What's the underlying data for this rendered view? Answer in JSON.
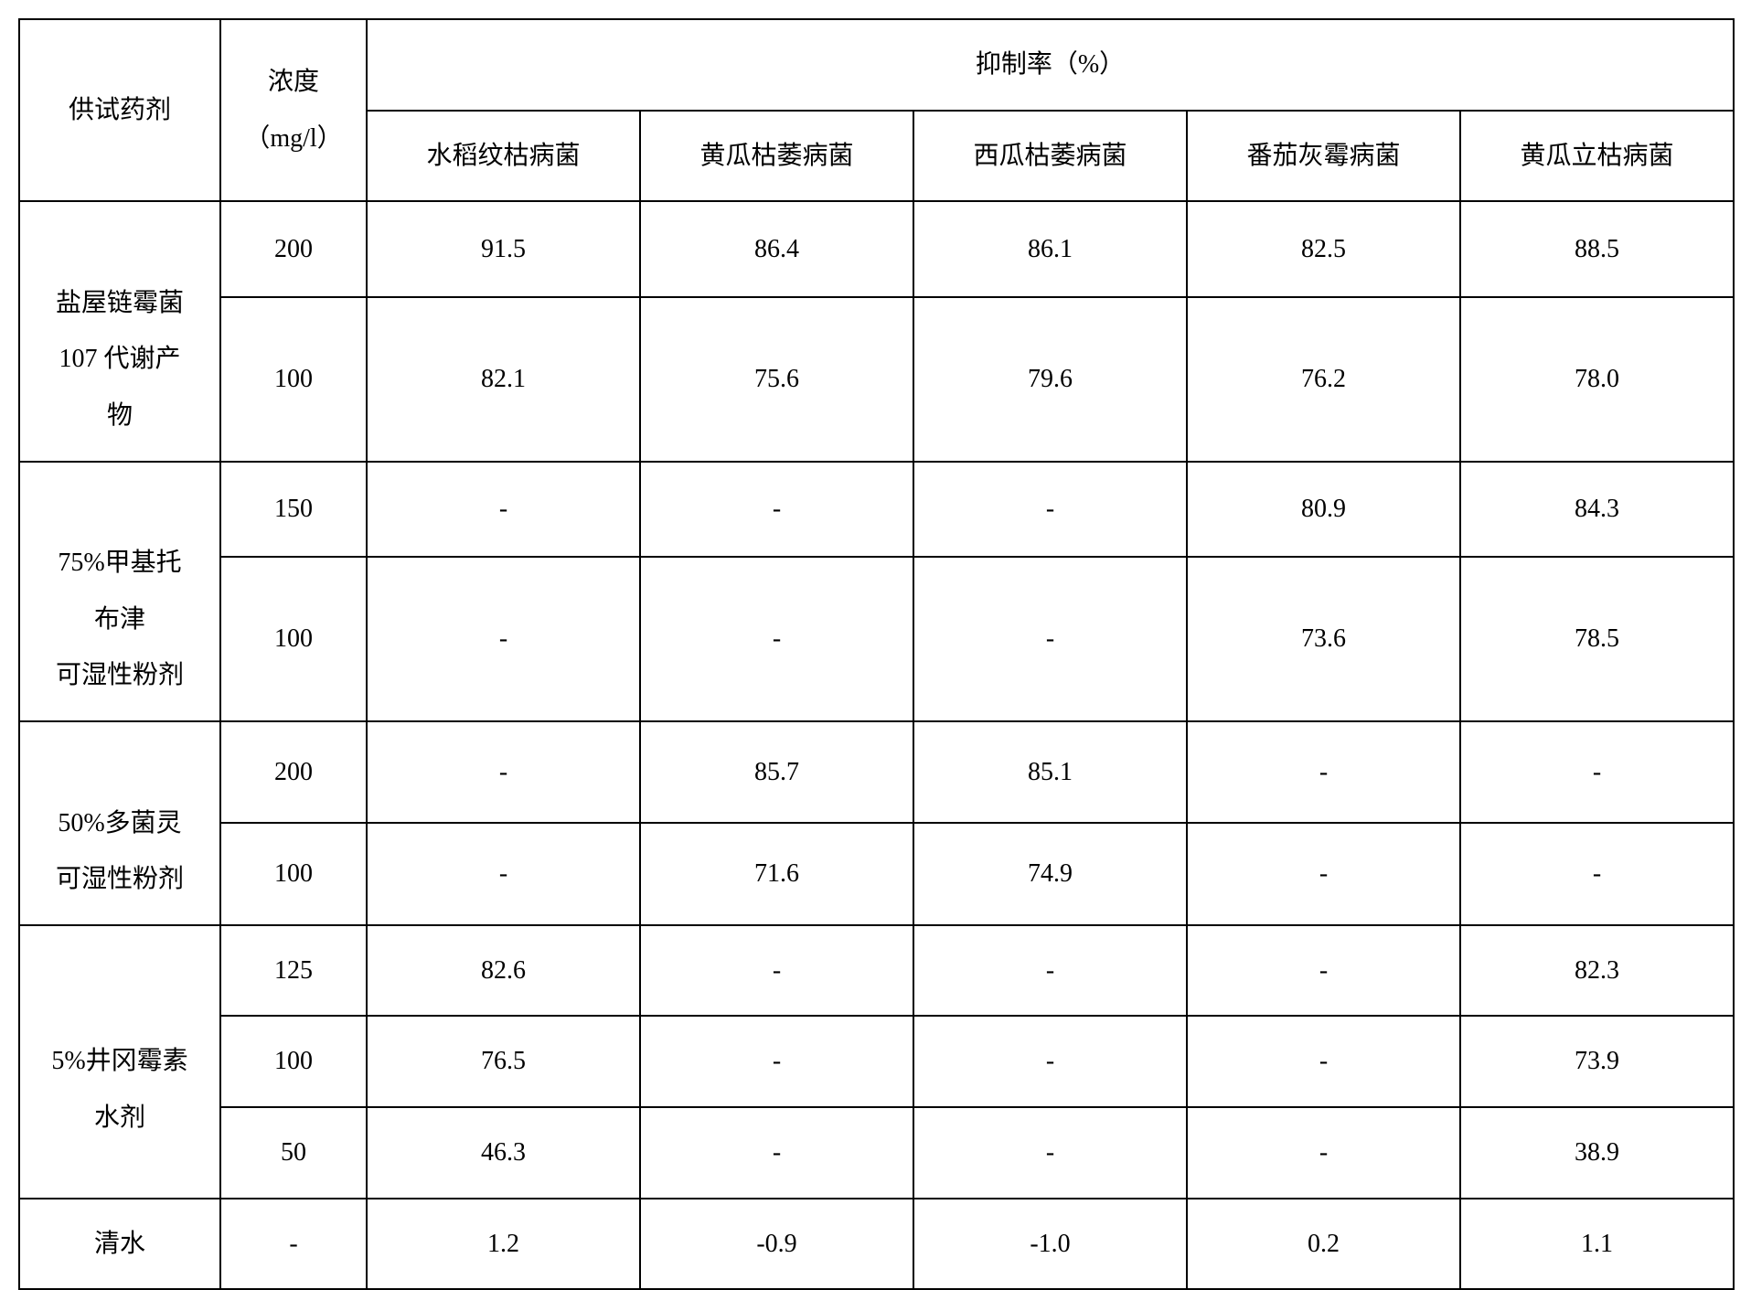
{
  "table": {
    "header": {
      "agent_label": "供试药剂",
      "concentration_label": "浓度",
      "concentration_unit": "（mg/l）",
      "inhibition_label": "抑制率（%）",
      "pathogens": [
        "水稻纹枯病菌",
        "黄瓜枯萎病菌",
        "西瓜枯萎病菌",
        "番茄灰霉病菌",
        "黄瓜立枯病菌"
      ]
    },
    "rows": [
      {
        "agent": "盐屋链霉菌\n107 代谢产\n物",
        "data": [
          {
            "conc": "200",
            "values": [
              "91.5",
              "86.4",
              "86.1",
              "82.5",
              "88.5"
            ]
          },
          {
            "conc": "100",
            "values": [
              "82.1",
              "75.6",
              "79.6",
              "76.2",
              "78.0"
            ]
          }
        ]
      },
      {
        "agent": "75%甲基托\n布津\n可湿性粉剂",
        "data": [
          {
            "conc": "150",
            "values": [
              "-",
              "-",
              "-",
              "80.9",
              "84.3"
            ]
          },
          {
            "conc": "100",
            "values": [
              "-",
              "-",
              "-",
              "73.6",
              "78.5"
            ]
          }
        ]
      },
      {
        "agent": "50%多菌灵\n可湿性粉剂",
        "data": [
          {
            "conc": "200",
            "values": [
              "-",
              "85.7",
              "85.1",
              "-",
              "-"
            ]
          },
          {
            "conc": "100",
            "values": [
              "-",
              "71.6",
              "74.9",
              "-",
              "-"
            ]
          }
        ]
      },
      {
        "agent": "5%井冈霉素\n水剂",
        "data": [
          {
            "conc": "125",
            "values": [
              "82.6",
              "-",
              "-",
              "-",
              "82.3"
            ]
          },
          {
            "conc": "100",
            "values": [
              "76.5",
              "-",
              "-",
              "-",
              "73.9"
            ]
          },
          {
            "conc": "50",
            "values": [
              "46.3",
              "-",
              "-",
              "-",
              "38.9"
            ]
          }
        ]
      },
      {
        "agent": "清水",
        "data": [
          {
            "conc": "-",
            "values": [
              "1.2",
              "-0.9",
              "-1.0",
              "0.2",
              "1.1"
            ]
          }
        ]
      }
    ],
    "styling": {
      "border_color": "#000000",
      "background_color": "#ffffff",
      "text_color": "#000000",
      "font_size": 28,
      "border_width": 2
    }
  }
}
